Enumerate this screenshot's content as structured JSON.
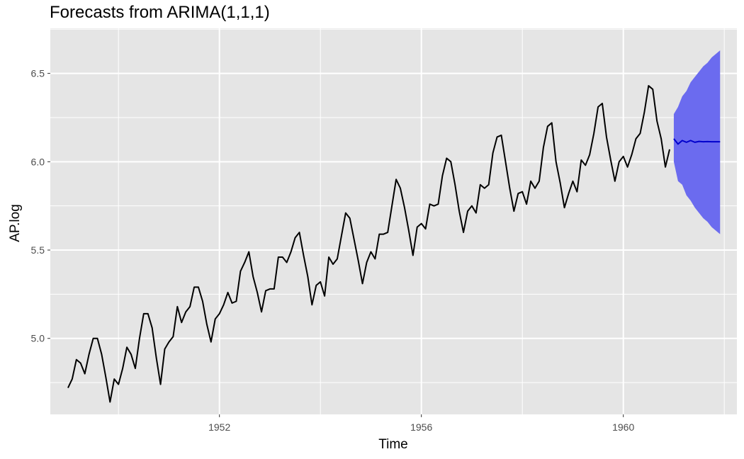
{
  "chart_data": {
    "type": "line",
    "title": "Forecasts from ARIMA(1,1,1)",
    "xlabel": "Time",
    "ylabel": "AP.log",
    "xlim": [
      1948.65,
      1962.25
    ],
    "ylim": [
      4.57,
      6.755
    ],
    "x_ticks": [
      1952,
      1956,
      1960
    ],
    "x_tick_labels": [
      "1952",
      "1956",
      "1960"
    ],
    "y_ticks": [
      5.0,
      5.5,
      6.0,
      6.5
    ],
    "y_tick_labels": [
      "5.0",
      "5.5",
      "6.0",
      "6.5"
    ],
    "grid": true,
    "colors": {
      "panel": "#e5e5e5",
      "grid": "#ffffff",
      "series": "#000000",
      "forecast": "#0000cc",
      "interval": "#6b6bef"
    },
    "series": [
      {
        "x_start": 1949.0,
        "x_step": 0.0833333,
        "values": [
          4.72,
          4.77,
          4.88,
          4.86,
          4.8,
          4.91,
          5.0,
          5.0,
          4.91,
          4.78,
          4.64,
          4.77,
          4.74,
          4.83,
          4.95,
          4.91,
          4.83,
          5.0,
          5.14,
          5.14,
          5.06,
          4.89,
          4.74,
          4.94,
          4.98,
          5.01,
          5.18,
          5.09,
          5.15,
          5.18,
          5.29,
          5.29,
          5.21,
          5.08,
          4.98,
          5.11,
          5.14,
          5.19,
          5.26,
          5.2,
          5.21,
          5.38,
          5.43,
          5.49,
          5.35,
          5.26,
          5.15,
          5.27,
          5.28,
          5.28,
          5.46,
          5.46,
          5.43,
          5.49,
          5.57,
          5.6,
          5.47,
          5.35,
          5.19,
          5.3,
          5.32,
          5.24,
          5.46,
          5.42,
          5.45,
          5.58,
          5.71,
          5.68,
          5.56,
          5.44,
          5.31,
          5.43,
          5.49,
          5.45,
          5.59,
          5.59,
          5.6,
          5.75,
          5.9,
          5.85,
          5.74,
          5.61,
          5.47,
          5.63,
          5.65,
          5.62,
          5.76,
          5.75,
          5.76,
          5.92,
          6.02,
          6.0,
          5.87,
          5.72,
          5.6,
          5.72,
          5.75,
          5.71,
          5.87,
          5.85,
          5.87,
          6.05,
          6.14,
          6.15,
          6.0,
          5.85,
          5.72,
          5.82,
          5.83,
          5.76,
          5.89,
          5.85,
          5.89,
          6.08,
          6.2,
          6.22,
          6.0,
          5.88,
          5.74,
          5.82,
          5.89,
          5.83,
          6.01,
          5.98,
          6.04,
          6.16,
          6.31,
          6.33,
          6.14,
          6.01,
          5.89,
          6.0,
          6.03,
          5.97,
          6.04,
          6.13,
          6.16,
          6.28,
          6.43,
          6.41,
          6.23,
          6.13,
          5.97,
          6.07
        ]
      }
    ],
    "forecast": {
      "x_start": 1961.0,
      "x_step": 0.0833333,
      "mean": [
        6.13,
        6.1,
        6.12,
        6.11,
        6.12,
        6.11,
        6.115,
        6.113,
        6.114,
        6.113,
        6.113,
        6.113
      ],
      "lower": [
        6.0,
        5.89,
        5.87,
        5.81,
        5.78,
        5.74,
        5.71,
        5.68,
        5.66,
        5.63,
        5.61,
        5.59
      ],
      "upper": [
        6.27,
        6.31,
        6.37,
        6.4,
        6.45,
        6.48,
        6.51,
        6.54,
        6.56,
        6.59,
        6.61,
        6.63
      ]
    }
  }
}
